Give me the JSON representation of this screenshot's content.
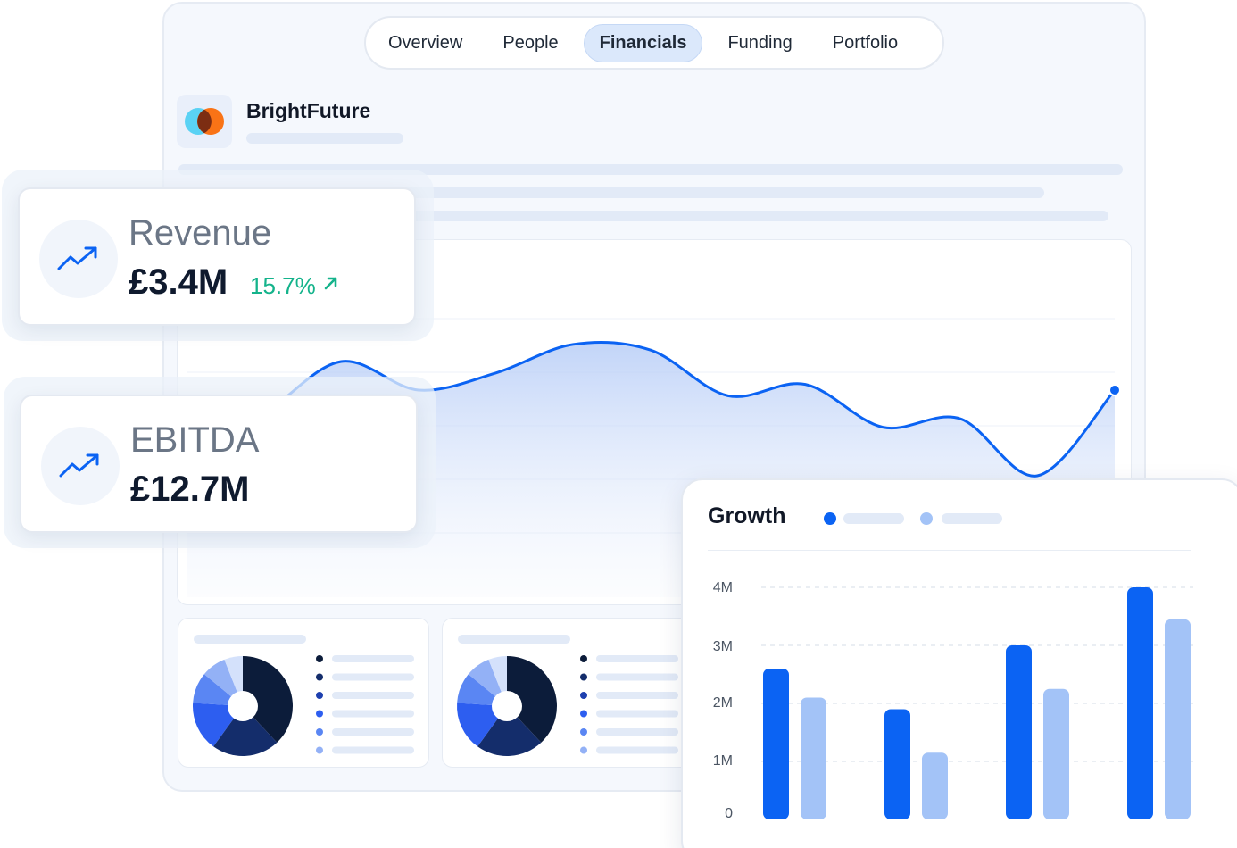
{
  "tabs": [
    "Overview",
    "People",
    "Financials",
    "Funding",
    "Portfolio"
  ],
  "active_tab": "Financials",
  "company": {
    "name": "BrightFuture",
    "logo_colors": [
      "#5ad2f4",
      "#f97316",
      "#7c2d12"
    ]
  },
  "kpis": {
    "revenue": {
      "label": "Revenue",
      "value": "£3.4M",
      "change": "15.7%",
      "icon": "trending-up-icon"
    },
    "ebitda": {
      "label": "EBITDA",
      "value": "£12.7M",
      "icon": "trending-up-icon"
    }
  },
  "colors": {
    "accent": "#0b63f3",
    "accent_light": "#a3c3f7",
    "positive": "#14b38b",
    "dark": "#0f1a2e"
  },
  "growth": {
    "title": "Growth"
  },
  "chart_data": [
    {
      "type": "area",
      "title": "",
      "x": [
        0,
        1,
        2,
        3,
        4,
        5,
        6,
        7,
        8,
        9,
        10,
        11,
        12
      ],
      "series": [
        {
          "values": [
            40,
            52,
            70,
            60,
            66,
            76,
            74,
            58,
            62,
            47,
            50,
            30,
            60
          ]
        }
      ],
      "ylim": [
        0,
        100
      ],
      "grid": true
    },
    {
      "type": "bar",
      "title": "Growth",
      "categories": [
        "",
        "",
        "",
        ""
      ],
      "series": [
        {
          "values": [
            2.6,
            1.9,
            3.0,
            4.0
          ]
        },
        {
          "values": [
            2.1,
            1.15,
            2.25,
            3.45
          ]
        }
      ],
      "yticks": [
        "0",
        "1M",
        "2M",
        "3M",
        "4M"
      ],
      "ylim": [
        0,
        4
      ],
      "grid": true
    },
    {
      "type": "pie",
      "values": [
        38,
        22,
        16,
        10,
        8,
        6
      ],
      "colors": [
        "#0c1c3a",
        "#142d6b",
        "#2d5ef0",
        "#5a86f3",
        "#93b1f6",
        "#d4e1fb"
      ]
    },
    {
      "type": "pie",
      "values": [
        38,
        22,
        16,
        10,
        8,
        6
      ],
      "colors": [
        "#0c1c3a",
        "#142d6b",
        "#2d5ef0",
        "#5a86f3",
        "#93b1f6",
        "#d4e1fb"
      ]
    }
  ],
  "donut_legend_colors": [
    "#0c1c3a",
    "#142d6b",
    "#1e40af",
    "#2d5ef0",
    "#5a86f3",
    "#93b1f6"
  ]
}
